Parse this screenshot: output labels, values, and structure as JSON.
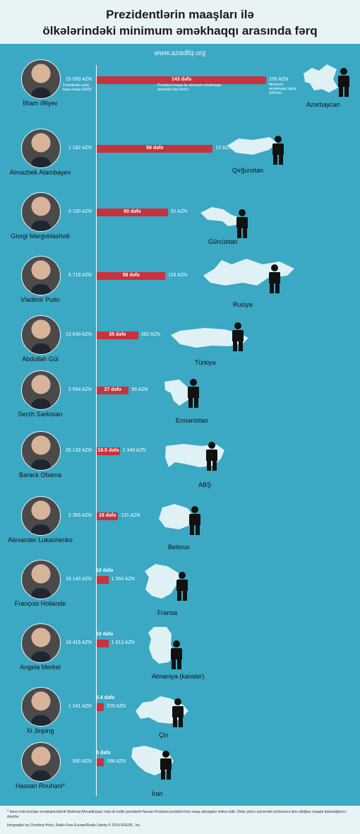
{
  "header": {
    "title_line1": "Prezidentlərin maaşları ilə",
    "title_line2": "ölkələrindəki minimum əməkhaqqı arasında fərq",
    "website": "www.azadliq.org"
  },
  "notes": {
    "president_salary_note": "Prezidentin aylıq baza maaşı (AZN)",
    "ratio_note": "Prezident maaşı ilə minimum əməkhaqqı arasında fərq (dəfə)",
    "min_salary_note": "Minimum əməkhaqqı (aylıq AZN ilə)"
  },
  "footer": {
    "footnote": "* İranın hələ bundan əvvəlkiprezidenti Mahmud Ahmadinejad, hələ də indiki prezidenti Hassan Rouhani prezident kimi maaş almaqdan imtina edib. Onlar yalnız universitet professoru kimi aldığları maaşla dolandığlarını deyirlər.",
    "credit": "Infographic by Christina Hicks, Radio Free Europe/Radio Liberty © 2014 RFE/RL, Inc."
  },
  "chart_data": {
    "type": "bar",
    "title": "Prezidentlərin maaşları ilə ölkələrindəki minimum əməkhaqqı arasında fərq",
    "series": [
      {
        "name": "Prezidentin aylıq baza maaşı (AZN)",
        "values": [
          15000,
          1182,
          3100,
          6716,
          13640,
          2554,
          26133,
          2365,
          16143,
          18415,
          1241,
          950
        ]
      },
      {
        "name": "Minimum əməkhaqqı (aylıq AZN ilə)",
        "values": [
          105,
          12,
          52,
          116,
          392,
          95,
          1340,
          131,
          1564,
          1913,
          229,
          188
        ]
      },
      {
        "name": "Prezident maaşı ilə minimum əməkhaqqı arasında fərq (dəfə)",
        "values": [
          143,
          98,
          60,
          58,
          35,
          27,
          19.5,
          18,
          10,
          10,
          5.4,
          5
        ]
      }
    ],
    "rows": [
      {
        "president": "İlham Əliyev",
        "president_salary": "15 000 AZN",
        "min_salary": "105 AZN",
        "ratio": "143 dəfə",
        "ratio_value": 143,
        "country": "Azərbaycan"
      },
      {
        "president": "Almazbek Atambayev",
        "president_salary": "1 182 AZN",
        "min_salary": "12 AZN",
        "ratio": "98 dəfə",
        "ratio_value": 98,
        "country": "Qırğızıstan"
      },
      {
        "president": "Giorgi Margvelashvili",
        "president_salary": "3 100 AZN",
        "min_salary": "52 AZN",
        "ratio": "60 dəfə",
        "ratio_value": 60,
        "country": "Gürcüstan"
      },
      {
        "president": "Vladimir Putin",
        "president_salary": "6 716 AZN",
        "min_salary": "116 AZN",
        "ratio": "58 dəfə",
        "ratio_value": 58,
        "country": "Rusiya"
      },
      {
        "president": "Abdullah Gül",
        "president_salary": "13 640 AZN",
        "min_salary": "392 AZN",
        "ratio": "35 dəfə",
        "ratio_value": 35,
        "country": "Türkiyə"
      },
      {
        "president": "Serzh Sarkisian",
        "president_salary": "2 554 AZN",
        "min_salary": "95 AZN",
        "ratio": "27 dəfə",
        "ratio_value": 27,
        "country": "Ermənistan"
      },
      {
        "president": "Barack Obama",
        "president_salary": "26 133 AZN",
        "min_salary": "1 340 AZN",
        "ratio": "19.5 dəfə",
        "ratio_value": 19.5,
        "country": "ABŞ"
      },
      {
        "president": "Alexander Lukashenko",
        "president_salary": "2 365 AZN",
        "min_salary": "131 AZN",
        "ratio": "18 dəfə",
        "ratio_value": 18,
        "country": "Belorus"
      },
      {
        "president": "François Hollande",
        "president_salary": "16 143 AZN",
        "min_salary": "1 564 AZN",
        "ratio": "10 dəfə",
        "ratio_value": 10,
        "country": "Fransa"
      },
      {
        "president": "Angela Merkel",
        "president_salary": "18 415 AZN",
        "min_salary": "1 913 AZN",
        "ratio": "10 dəfə",
        "ratio_value": 10,
        "country": "Almaniya (kansler)"
      },
      {
        "president": "Xi Jinping",
        "president_salary": "1 241 AZN",
        "min_salary": "229 AZN",
        "ratio": "5.4 dəfə",
        "ratio_value": 5.4,
        "country": "Çin"
      },
      {
        "president": "Hassan Rouhani*",
        "president_salary": "950 AZN",
        "min_salary": "188 AZN",
        "ratio": "5 dəfə",
        "ratio_value": 5,
        "country": "İran"
      }
    ],
    "xlim": [
      0,
      143
    ],
    "grid": false,
    "legend": "none"
  }
}
